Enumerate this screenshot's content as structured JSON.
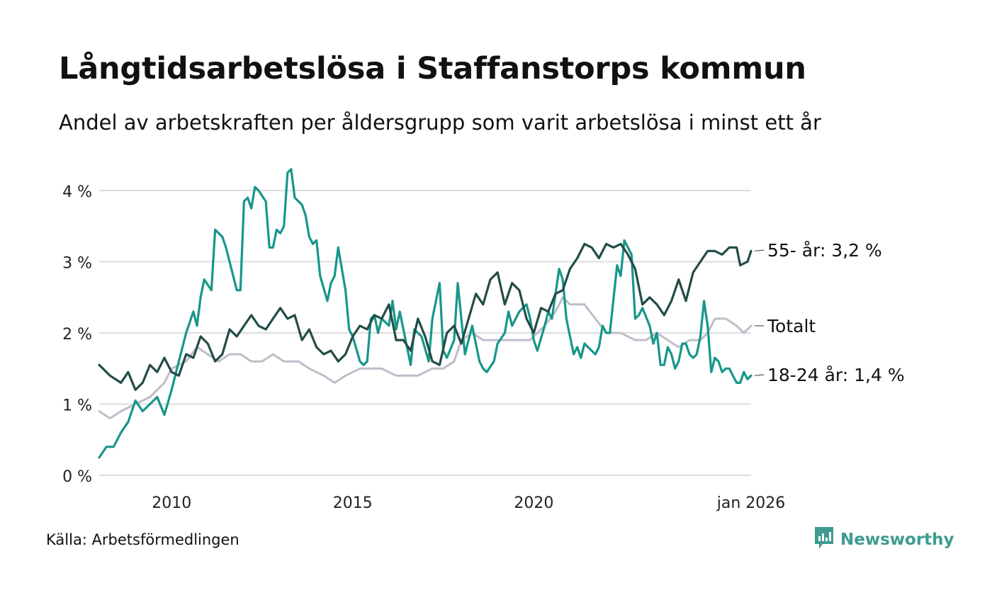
{
  "title": "Långtidsarbetslösa i Staffanstorps kommun",
  "subtitle": "Andel av arbetskraften per åldersgrupp som varit arbetslösa i minst ett år",
  "source": "Källa: Arbetsförmedlingen",
  "brand": {
    "name": "Newsworthy",
    "icon": "newsworthy-logo-icon",
    "color": "#3d9b91"
  },
  "chart_data": {
    "type": "line",
    "title": "Långtidsarbetslösa i Staffanstorps kommun",
    "xlabel": "",
    "ylabel": "",
    "ylim": [
      0,
      4.5
    ],
    "xlim": [
      2008.0,
      2026.0
    ],
    "grid": true,
    "y_ticks": [
      {
        "value": 0,
        "label": "0 %"
      },
      {
        "value": 1,
        "label": "1 %"
      },
      {
        "value": 2,
        "label": "2 %"
      },
      {
        "value": 3,
        "label": "3 %"
      },
      {
        "value": 4,
        "label": "4 %"
      }
    ],
    "x_ticks": [
      {
        "value": 2010,
        "label": "2010"
      },
      {
        "value": 2015,
        "label": "2015"
      },
      {
        "value": 2020,
        "label": "2020"
      },
      {
        "value": 2026,
        "label": "jan 2026"
      }
    ],
    "series": [
      {
        "name": "Totalt",
        "end_label": "Totalt",
        "color": "#c0bcc9",
        "points": [
          [
            2008.0,
            0.9
          ],
          [
            2008.3,
            0.8
          ],
          [
            2008.6,
            0.9
          ],
          [
            2009.0,
            1.0
          ],
          [
            2009.4,
            1.1
          ],
          [
            2009.6,
            1.2
          ],
          [
            2009.8,
            1.3
          ],
          [
            2010.0,
            1.5
          ],
          [
            2010.4,
            1.6
          ],
          [
            2010.7,
            1.8
          ],
          [
            2011.0,
            1.7
          ],
          [
            2011.3,
            1.6
          ],
          [
            2011.6,
            1.7
          ],
          [
            2011.9,
            1.7
          ],
          [
            2012.2,
            1.6
          ],
          [
            2012.5,
            1.6
          ],
          [
            2012.8,
            1.7
          ],
          [
            2013.1,
            1.6
          ],
          [
            2013.5,
            1.6
          ],
          [
            2013.8,
            1.5
          ],
          [
            2014.2,
            1.4
          ],
          [
            2014.5,
            1.3
          ],
          [
            2014.8,
            1.4
          ],
          [
            2015.2,
            1.5
          ],
          [
            2015.5,
            1.5
          ],
          [
            2015.8,
            1.5
          ],
          [
            2016.2,
            1.4
          ],
          [
            2016.5,
            1.4
          ],
          [
            2016.8,
            1.4
          ],
          [
            2017.2,
            1.5
          ],
          [
            2017.5,
            1.5
          ],
          [
            2017.8,
            1.6
          ],
          [
            2018.0,
            1.9
          ],
          [
            2018.3,
            2.0
          ],
          [
            2018.6,
            1.9
          ],
          [
            2019.0,
            1.9
          ],
          [
            2019.3,
            1.9
          ],
          [
            2019.6,
            1.9
          ],
          [
            2019.9,
            1.9
          ],
          [
            2020.1,
            2.0
          ],
          [
            2020.3,
            2.1
          ],
          [
            2020.6,
            2.3
          ],
          [
            2020.8,
            2.5
          ],
          [
            2021.0,
            2.4
          ],
          [
            2021.4,
            2.4
          ],
          [
            2021.7,
            2.2
          ],
          [
            2022.0,
            2.0
          ],
          [
            2022.4,
            2.0
          ],
          [
            2022.8,
            1.9
          ],
          [
            2023.1,
            1.9
          ],
          [
            2023.4,
            2.0
          ],
          [
            2023.7,
            1.9
          ],
          [
            2024.0,
            1.8
          ],
          [
            2024.3,
            1.9
          ],
          [
            2024.6,
            1.9
          ],
          [
            2024.8,
            2.0
          ],
          [
            2025.0,
            2.2
          ],
          [
            2025.3,
            2.2
          ],
          [
            2025.6,
            2.1
          ],
          [
            2025.8,
            2.0
          ],
          [
            2026.0,
            2.1
          ]
        ]
      },
      {
        "name": "18-24 år",
        "end_label": "18-24 år: 1,4 %",
        "color": "#17968a",
        "points": [
          [
            2008.0,
            0.25
          ],
          [
            2008.2,
            0.4
          ],
          [
            2008.4,
            0.4
          ],
          [
            2008.6,
            0.6
          ],
          [
            2008.8,
            0.75
          ],
          [
            2009.0,
            1.05
          ],
          [
            2009.2,
            0.9
          ],
          [
            2009.4,
            1.0
          ],
          [
            2009.6,
            1.1
          ],
          [
            2009.8,
            0.85
          ],
          [
            2010.0,
            1.2
          ],
          [
            2010.2,
            1.6
          ],
          [
            2010.4,
            2.0
          ],
          [
            2010.6,
            2.3
          ],
          [
            2010.7,
            2.1
          ],
          [
            2010.8,
            2.5
          ],
          [
            2010.9,
            2.75
          ],
          [
            2011.1,
            2.6
          ],
          [
            2011.2,
            3.45
          ],
          [
            2011.4,
            3.35
          ],
          [
            2011.5,
            3.2
          ],
          [
            2011.7,
            2.8
          ],
          [
            2011.8,
            2.6
          ],
          [
            2011.9,
            2.6
          ],
          [
            2012.0,
            3.85
          ],
          [
            2012.1,
            3.9
          ],
          [
            2012.2,
            3.75
          ],
          [
            2012.3,
            4.05
          ],
          [
            2012.4,
            4.0
          ],
          [
            2012.6,
            3.85
          ],
          [
            2012.7,
            3.2
          ],
          [
            2012.8,
            3.2
          ],
          [
            2012.9,
            3.45
          ],
          [
            2013.0,
            3.4
          ],
          [
            2013.1,
            3.5
          ],
          [
            2013.2,
            4.25
          ],
          [
            2013.3,
            4.3
          ],
          [
            2013.4,
            3.9
          ],
          [
            2013.6,
            3.8
          ],
          [
            2013.7,
            3.65
          ],
          [
            2013.8,
            3.35
          ],
          [
            2013.9,
            3.25
          ],
          [
            2014.0,
            3.3
          ],
          [
            2014.1,
            2.8
          ],
          [
            2014.3,
            2.45
          ],
          [
            2014.4,
            2.7
          ],
          [
            2014.5,
            2.8
          ],
          [
            2014.6,
            3.2
          ],
          [
            2014.8,
            2.6
          ],
          [
            2014.9,
            2.05
          ],
          [
            2015.0,
            1.95
          ],
          [
            2015.2,
            1.6
          ],
          [
            2015.3,
            1.55
          ],
          [
            2015.4,
            1.6
          ],
          [
            2015.5,
            2.2
          ],
          [
            2015.6,
            2.25
          ],
          [
            2015.7,
            2.0
          ],
          [
            2015.8,
            2.2
          ],
          [
            2016.0,
            2.1
          ],
          [
            2016.1,
            2.45
          ],
          [
            2016.2,
            2.05
          ],
          [
            2016.3,
            2.3
          ],
          [
            2016.5,
            1.8
          ],
          [
            2016.6,
            1.55
          ],
          [
            2016.7,
            2.05
          ],
          [
            2016.9,
            1.95
          ],
          [
            2017.1,
            1.6
          ],
          [
            2017.2,
            2.2
          ],
          [
            2017.4,
            2.7
          ],
          [
            2017.5,
            1.75
          ],
          [
            2017.6,
            1.65
          ],
          [
            2017.8,
            1.9
          ],
          [
            2017.9,
            2.7
          ],
          [
            2018.0,
            2.2
          ],
          [
            2018.1,
            1.7
          ],
          [
            2018.3,
            2.1
          ],
          [
            2018.5,
            1.6
          ],
          [
            2018.6,
            1.5
          ],
          [
            2018.7,
            1.45
          ],
          [
            2018.9,
            1.6
          ],
          [
            2019.0,
            1.85
          ],
          [
            2019.2,
            2.0
          ],
          [
            2019.3,
            2.3
          ],
          [
            2019.4,
            2.1
          ],
          [
            2019.6,
            2.3
          ],
          [
            2019.8,
            2.4
          ],
          [
            2019.9,
            2.2
          ],
          [
            2020.0,
            1.9
          ],
          [
            2020.1,
            1.75
          ],
          [
            2020.3,
            2.1
          ],
          [
            2020.4,
            2.3
          ],
          [
            2020.5,
            2.2
          ],
          [
            2020.7,
            2.9
          ],
          [
            2020.8,
            2.75
          ],
          [
            2020.9,
            2.2
          ],
          [
            2021.1,
            1.7
          ],
          [
            2021.2,
            1.8
          ],
          [
            2021.3,
            1.65
          ],
          [
            2021.4,
            1.85
          ],
          [
            2021.6,
            1.75
          ],
          [
            2021.7,
            1.7
          ],
          [
            2021.8,
            1.8
          ],
          [
            2021.9,
            2.1
          ],
          [
            2022.0,
            2.0
          ],
          [
            2022.1,
            2.0
          ],
          [
            2022.3,
            2.95
          ],
          [
            2022.4,
            2.8
          ],
          [
            2022.5,
            3.3
          ],
          [
            2022.7,
            3.1
          ],
          [
            2022.8,
            2.2
          ],
          [
            2022.9,
            2.25
          ],
          [
            2023.0,
            2.35
          ],
          [
            2023.2,
            2.1
          ],
          [
            2023.3,
            1.85
          ],
          [
            2023.4,
            2.0
          ],
          [
            2023.5,
            1.55
          ],
          [
            2023.6,
            1.55
          ],
          [
            2023.7,
            1.8
          ],
          [
            2023.8,
            1.7
          ],
          [
            2023.9,
            1.5
          ],
          [
            2024.0,
            1.6
          ],
          [
            2024.1,
            1.85
          ],
          [
            2024.2,
            1.85
          ],
          [
            2024.3,
            1.7
          ],
          [
            2024.4,
            1.65
          ],
          [
            2024.5,
            1.7
          ],
          [
            2024.6,
            1.95
          ],
          [
            2024.7,
            2.45
          ],
          [
            2024.8,
            2.1
          ],
          [
            2024.9,
            1.45
          ],
          [
            2025.0,
            1.65
          ],
          [
            2025.1,
            1.6
          ],
          [
            2025.2,
            1.45
          ],
          [
            2025.3,
            1.5
          ],
          [
            2025.4,
            1.5
          ],
          [
            2025.5,
            1.4
          ],
          [
            2025.6,
            1.3
          ],
          [
            2025.7,
            1.3
          ],
          [
            2025.8,
            1.45
          ],
          [
            2025.9,
            1.35
          ],
          [
            2026.0,
            1.4
          ]
        ]
      },
      {
        "name": "55- år",
        "end_label": "55- år: 3,2 %",
        "color": "#234c46",
        "points": [
          [
            2008.0,
            1.55
          ],
          [
            2008.3,
            1.4
          ],
          [
            2008.6,
            1.3
          ],
          [
            2008.8,
            1.45
          ],
          [
            2009.0,
            1.2
          ],
          [
            2009.2,
            1.3
          ],
          [
            2009.4,
            1.55
          ],
          [
            2009.6,
            1.45
          ],
          [
            2009.8,
            1.65
          ],
          [
            2010.0,
            1.45
          ],
          [
            2010.2,
            1.4
          ],
          [
            2010.4,
            1.7
          ],
          [
            2010.6,
            1.65
          ],
          [
            2010.8,
            1.95
          ],
          [
            2011.0,
            1.85
          ],
          [
            2011.2,
            1.6
          ],
          [
            2011.4,
            1.7
          ],
          [
            2011.6,
            2.05
          ],
          [
            2011.8,
            1.95
          ],
          [
            2012.0,
            2.1
          ],
          [
            2012.2,
            2.25
          ],
          [
            2012.4,
            2.1
          ],
          [
            2012.6,
            2.05
          ],
          [
            2012.8,
            2.2
          ],
          [
            2013.0,
            2.35
          ],
          [
            2013.2,
            2.2
          ],
          [
            2013.4,
            2.25
          ],
          [
            2013.6,
            1.9
          ],
          [
            2013.8,
            2.05
          ],
          [
            2014.0,
            1.8
          ],
          [
            2014.2,
            1.7
          ],
          [
            2014.4,
            1.75
          ],
          [
            2014.6,
            1.6
          ],
          [
            2014.8,
            1.7
          ],
          [
            2015.0,
            1.95
          ],
          [
            2015.2,
            2.1
          ],
          [
            2015.4,
            2.05
          ],
          [
            2015.6,
            2.25
          ],
          [
            2015.8,
            2.2
          ],
          [
            2016.0,
            2.4
          ],
          [
            2016.2,
            1.9
          ],
          [
            2016.4,
            1.9
          ],
          [
            2016.6,
            1.75
          ],
          [
            2016.8,
            2.2
          ],
          [
            2017.0,
            1.95
          ],
          [
            2017.2,
            1.6
          ],
          [
            2017.4,
            1.55
          ],
          [
            2017.6,
            2.0
          ],
          [
            2017.8,
            2.1
          ],
          [
            2018.0,
            1.85
          ],
          [
            2018.2,
            2.2
          ],
          [
            2018.4,
            2.55
          ],
          [
            2018.6,
            2.4
          ],
          [
            2018.8,
            2.75
          ],
          [
            2019.0,
            2.85
          ],
          [
            2019.2,
            2.4
          ],
          [
            2019.4,
            2.7
          ],
          [
            2019.6,
            2.6
          ],
          [
            2019.8,
            2.2
          ],
          [
            2020.0,
            2.0
          ],
          [
            2020.2,
            2.35
          ],
          [
            2020.4,
            2.3
          ],
          [
            2020.6,
            2.55
          ],
          [
            2020.8,
            2.6
          ],
          [
            2021.0,
            2.9
          ],
          [
            2021.2,
            3.05
          ],
          [
            2021.4,
            3.25
          ],
          [
            2021.6,
            3.2
          ],
          [
            2021.8,
            3.05
          ],
          [
            2022.0,
            3.25
          ],
          [
            2022.2,
            3.2
          ],
          [
            2022.4,
            3.25
          ],
          [
            2022.6,
            3.1
          ],
          [
            2022.8,
            2.9
          ],
          [
            2023.0,
            2.4
          ],
          [
            2023.2,
            2.5
          ],
          [
            2023.4,
            2.4
          ],
          [
            2023.6,
            2.25
          ],
          [
            2023.8,
            2.45
          ],
          [
            2024.0,
            2.75
          ],
          [
            2024.2,
            2.45
          ],
          [
            2024.4,
            2.85
          ],
          [
            2024.6,
            3.0
          ],
          [
            2024.8,
            3.15
          ],
          [
            2025.0,
            3.15
          ],
          [
            2025.2,
            3.1
          ],
          [
            2025.4,
            3.2
          ],
          [
            2025.6,
            3.2
          ],
          [
            2025.7,
            2.95
          ],
          [
            2025.9,
            3.0
          ],
          [
            2026.0,
            3.15
          ]
        ]
      }
    ]
  }
}
